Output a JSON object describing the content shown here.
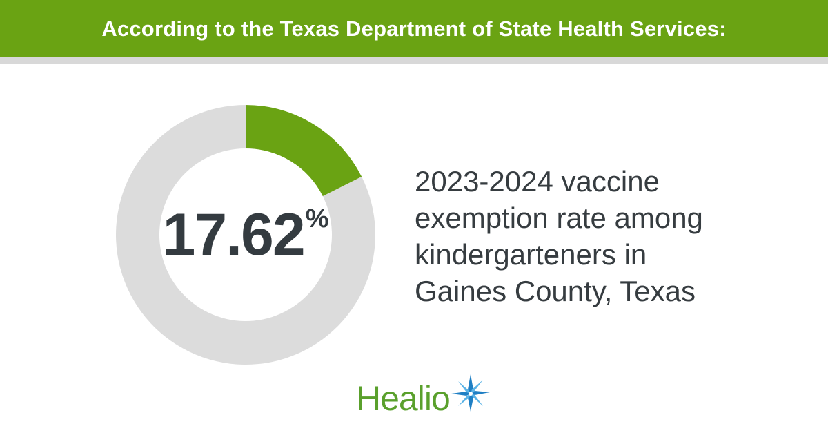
{
  "banner": {
    "text": "According to the Texas Department of State Health Services:"
  },
  "chart_data": {
    "type": "pie",
    "variant": "donut",
    "values": [
      17.62,
      82.38
    ],
    "unit": "%",
    "colors": [
      "#6aa313",
      "#dcdcdc"
    ],
    "center_value": "17.62",
    "center_unit": "%"
  },
  "description": {
    "lines": [
      "2023-2024 vaccine",
      "exemption rate among",
      "kindergarteners in",
      "Gaines County, Texas"
    ]
  },
  "logo": {
    "word": "Healio",
    "icon": "star-burst-icon",
    "color": "#5aa02c"
  },
  "colors": {
    "banner": "#6aa313",
    "rule": "#d8d8d8",
    "text": "#363c40"
  }
}
